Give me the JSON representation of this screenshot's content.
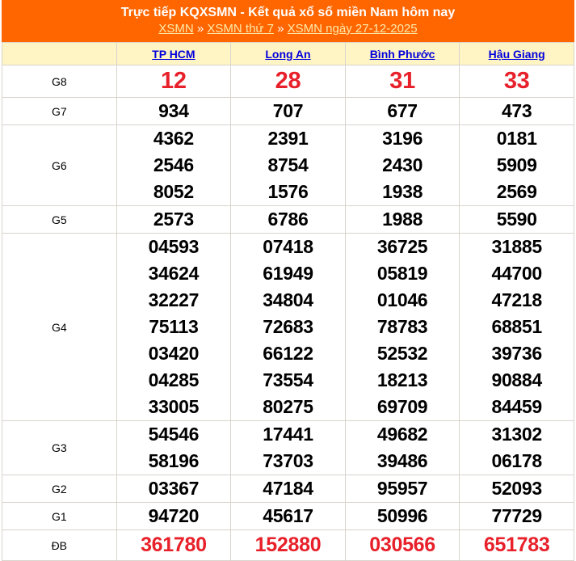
{
  "header": {
    "title": "Trực tiếp KQXSMN - Kết quả xổ số miền Nam hôm nay",
    "breadcrumb": [
      {
        "label": "XSMN"
      },
      {
        "label": "XSMN thứ 7"
      },
      {
        "label": "XSMN",
        "suffix": " ngày ",
        "date": "27-12-2025"
      }
    ],
    "separator": "»"
  },
  "colors": {
    "header_bg": "#ff6600",
    "table_head_bg": "#fff4c4",
    "highlight": "#e8202a",
    "link": "#0000dd"
  },
  "provinces": [
    "TP HCM",
    "Long An",
    "Bình Phước",
    "Hậu Giang"
  ],
  "prizes": [
    {
      "label": "G8",
      "values": [
        [
          "12"
        ],
        [
          "28"
        ],
        [
          "31"
        ],
        [
          "33"
        ]
      ]
    },
    {
      "label": "G7",
      "values": [
        [
          "934"
        ],
        [
          "707"
        ],
        [
          "677"
        ],
        [
          "473"
        ]
      ]
    },
    {
      "label": "G6",
      "values": [
        [
          "4362",
          "2546",
          "8052"
        ],
        [
          "2391",
          "8754",
          "1576"
        ],
        [
          "3196",
          "2430",
          "1938"
        ],
        [
          "0181",
          "5909",
          "2569"
        ]
      ]
    },
    {
      "label": "G5",
      "values": [
        [
          "2573"
        ],
        [
          "6786"
        ],
        [
          "1988"
        ],
        [
          "5590"
        ]
      ]
    },
    {
      "label": "G4",
      "values": [
        [
          "04593",
          "34624",
          "32227",
          "75113",
          "03420",
          "04285",
          "33005"
        ],
        [
          "07418",
          "61949",
          "34804",
          "72683",
          "66122",
          "73554",
          "80275"
        ],
        [
          "36725",
          "05819",
          "01046",
          "78783",
          "52532",
          "18213",
          "69709"
        ],
        [
          "31885",
          "44700",
          "47218",
          "68851",
          "39736",
          "90884",
          "84459"
        ]
      ]
    },
    {
      "label": "G3",
      "values": [
        [
          "54546",
          "58196"
        ],
        [
          "17441",
          "73703"
        ],
        [
          "49682",
          "39486"
        ],
        [
          "31302",
          "06178"
        ]
      ]
    },
    {
      "label": "G2",
      "values": [
        [
          "03367"
        ],
        [
          "47184"
        ],
        [
          "95957"
        ],
        [
          "52093"
        ]
      ]
    },
    {
      "label": "G1",
      "values": [
        [
          "94720"
        ],
        [
          "45617"
        ],
        [
          "50996"
        ],
        [
          "77729"
        ]
      ]
    },
    {
      "label": "ĐB",
      "values": [
        [
          "361780"
        ],
        [
          "152880"
        ],
        [
          "030566"
        ],
        [
          "651783"
        ]
      ]
    }
  ]
}
